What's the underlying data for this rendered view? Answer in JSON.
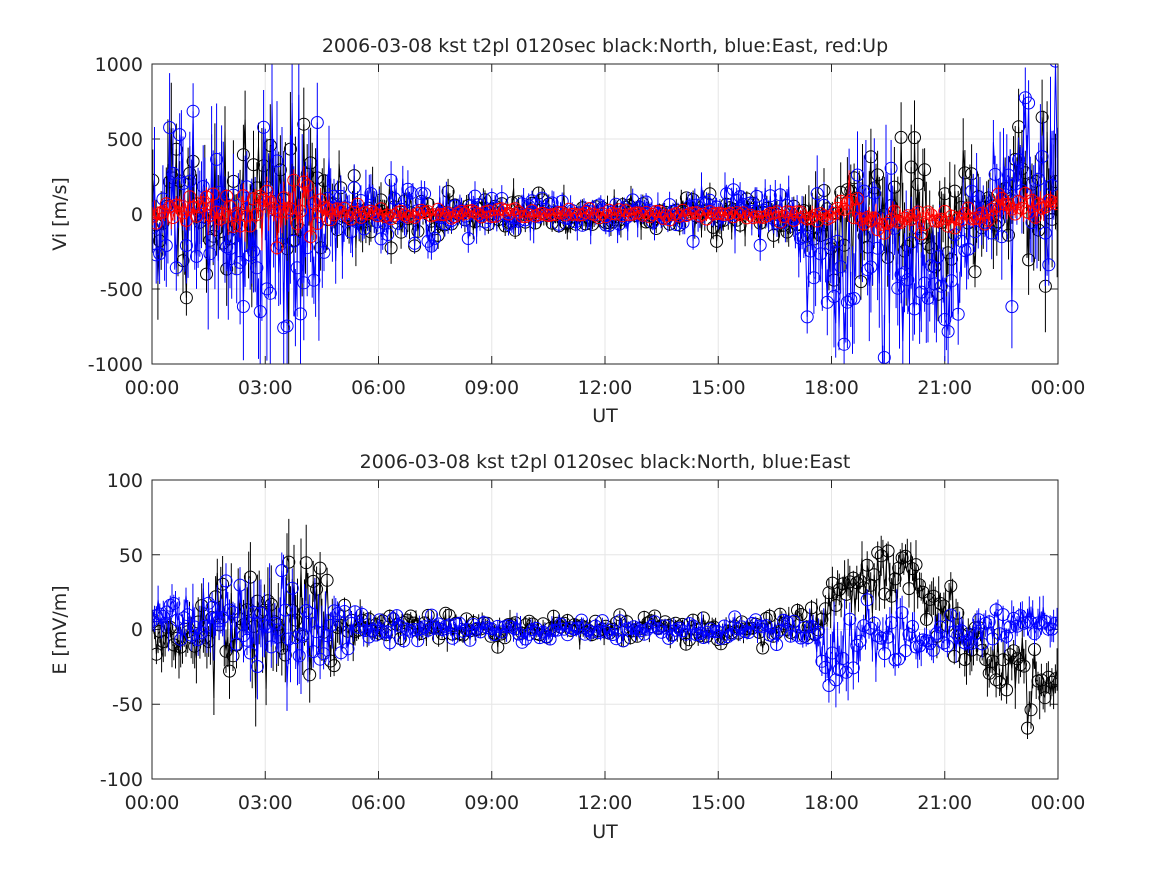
{
  "chart_data": [
    {
      "type": "line",
      "title": "2006-03-08 kst t2pl 0120sec black:North, blue:East, red:Up",
      "xlabel": "UT",
      "ylabel": "Vi [m/s]",
      "xlim_hours": [
        0,
        24
      ],
      "ylim": [
        -1000,
        1000
      ],
      "x_ticks": [
        "00:00",
        "03:00",
        "06:00",
        "09:00",
        "12:00",
        "15:00",
        "18:00",
        "21:00",
        "00:00"
      ],
      "y_ticks": [
        "1000",
        "500",
        "0",
        "-500",
        "-1000"
      ],
      "grid": true,
      "series": [
        {
          "name": "North",
          "color": "#000000",
          "marker": "circle",
          "profile": [
            [
              0,
              0,
              350
            ],
            [
              1,
              20,
              300
            ],
            [
              2,
              30,
              330
            ],
            [
              3,
              30,
              380
            ],
            [
              4,
              40,
              420
            ],
            [
              5,
              10,
              170
            ],
            [
              6,
              5,
              130
            ],
            [
              8,
              5,
              95
            ],
            [
              9,
              3,
              85
            ],
            [
              12,
              0,
              70
            ],
            [
              13,
              -5,
              75
            ],
            [
              14,
              5,
              85
            ],
            [
              16,
              10,
              95
            ],
            [
              17,
              -10,
              110
            ],
            [
              18,
              -40,
              220
            ],
            [
              19,
              0,
              260
            ],
            [
              20,
              -80,
              360
            ],
            [
              21,
              -80,
              260
            ],
            [
              22,
              -40,
              210
            ],
            [
              22.5,
              120,
              280
            ],
            [
              24,
              220,
              380
            ]
          ]
        },
        {
          "name": "East",
          "color": "#0000ff",
          "marker": "circle",
          "profile": [
            [
              0,
              30,
              400
            ],
            [
              1,
              0,
              380
            ],
            [
              2,
              -30,
              450
            ],
            [
              3,
              -100,
              550
            ],
            [
              4,
              -100,
              550
            ],
            [
              5,
              0,
              200
            ],
            [
              6,
              -10,
              150
            ],
            [
              8,
              -5,
              110
            ],
            [
              9,
              -5,
              100
            ],
            [
              12,
              0,
              80
            ],
            [
              13,
              0,
              80
            ],
            [
              14,
              20,
              95
            ],
            [
              16,
              20,
              110
            ],
            [
              17,
              -30,
              150
            ],
            [
              18,
              -450,
              380
            ],
            [
              19,
              -200,
              400
            ],
            [
              20,
              -550,
              420
            ],
            [
              21,
              -350,
              320
            ],
            [
              22,
              0,
              200
            ],
            [
              22.5,
              150,
              320
            ],
            [
              24,
              330,
              400
            ]
          ]
        },
        {
          "name": "Up",
          "color": "#ff0000",
          "marker": "circle",
          "profile": [
            [
              0,
              10,
              70
            ],
            [
              1,
              15,
              70
            ],
            [
              2,
              20,
              80
            ],
            [
              3,
              25,
              110
            ],
            [
              4,
              30,
              130
            ],
            [
              5,
              10,
              35
            ],
            [
              6,
              0,
              25
            ],
            [
              12,
              0,
              18
            ],
            [
              17,
              -10,
              20
            ],
            [
              18,
              -20,
              35
            ],
            [
              18.5,
              100,
              80
            ],
            [
              19,
              -30,
              60
            ],
            [
              21,
              -40,
              50
            ],
            [
              22,
              -10,
              40
            ],
            [
              22.5,
              60,
              70
            ],
            [
              24,
              60,
              70
            ]
          ]
        }
      ]
    },
    {
      "type": "line",
      "title": "2006-03-08 kst t2pl 0120sec black:North, blue:East",
      "xlabel": "UT",
      "ylabel": "E [mV/m]",
      "xlim_hours": [
        0,
        24
      ],
      "ylim": [
        -100,
        100
      ],
      "x_ticks": [
        "00:00",
        "03:00",
        "06:00",
        "09:00",
        "12:00",
        "15:00",
        "18:00",
        "21:00",
        "00:00"
      ],
      "y_ticks": [
        "100",
        "50",
        "0",
        "-50",
        "-100"
      ],
      "grid": true,
      "series": [
        {
          "name": "North",
          "color": "#000000",
          "marker": "circle",
          "profile": [
            [
              0,
              -10,
              15
            ],
            [
              1,
              -5,
              18
            ],
            [
              2,
              0,
              22
            ],
            [
              3,
              5,
              28
            ],
            [
              4,
              5,
              32
            ],
            [
              5,
              3,
              12
            ],
            [
              6,
              0,
              7
            ],
            [
              12,
              0,
              5
            ],
            [
              16,
              0,
              6
            ],
            [
              17.5,
              5,
              8
            ],
            [
              18,
              20,
              12
            ],
            [
              19,
              30,
              15
            ],
            [
              20,
              40,
              18
            ],
            [
              21,
              10,
              15
            ],
            [
              22,
              -15,
              15
            ],
            [
              22.5,
              -25,
              15
            ],
            [
              24,
              -40,
              15
            ]
          ]
        },
        {
          "name": "East",
          "color": "#0000ff",
          "marker": "circle",
          "profile": [
            [
              0,
              5,
              12
            ],
            [
              1,
              8,
              14
            ],
            [
              2,
              10,
              18
            ],
            [
              3,
              5,
              25
            ],
            [
              4,
              0,
              25
            ],
            [
              5,
              0,
              10
            ],
            [
              6,
              0,
              6
            ],
            [
              12,
              0,
              4
            ],
            [
              16,
              0,
              5
            ],
            [
              17.5,
              0,
              6
            ],
            [
              18,
              -20,
              22
            ],
            [
              19,
              0,
              12
            ],
            [
              20,
              -5,
              12
            ],
            [
              21,
              -5,
              10
            ],
            [
              22,
              0,
              10
            ],
            [
              22.5,
              5,
              10
            ],
            [
              24,
              5,
              12
            ]
          ]
        }
      ]
    }
  ]
}
